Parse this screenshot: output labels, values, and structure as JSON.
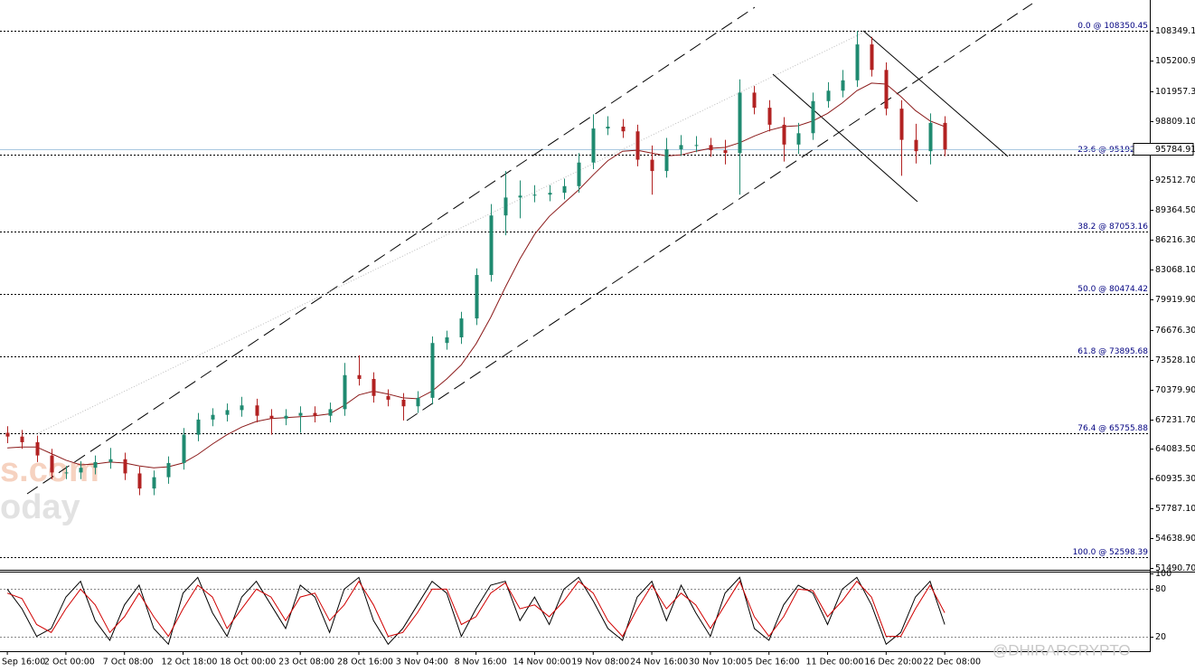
{
  "chart_data": [
    {
      "type": "candlestick",
      "xlim": [
        -0.5,
        78
      ],
      "xticks": [
        {
          "value": 0,
          "label": "Sep 16:00"
        },
        {
          "value": 4,
          "label": "2 Oct 00:00"
        },
        {
          "value": 8,
          "label": "7 Oct 08:00"
        },
        {
          "value": 12,
          "label": "12 Oct 18:00"
        },
        {
          "value": 16,
          "label": "18 Oct 00:00"
        },
        {
          "value": 20,
          "label": "23 Oct 08:00"
        },
        {
          "value": 24,
          "label": "28 Oct 16:00"
        },
        {
          "value": 28,
          "label": "3 Nov 04:00"
        },
        {
          "value": 32,
          "label": "8 Nov 16:00"
        },
        {
          "value": 36,
          "label": "14 Nov 00:00"
        },
        {
          "value": 40,
          "label": "19 Nov 08:00"
        },
        {
          "value": 44,
          "label": "24 Nov 16:00"
        },
        {
          "value": 48,
          "label": "30 Nov 10:00"
        },
        {
          "value": 52,
          "label": "5 Dec 16:00"
        },
        {
          "value": 56,
          "label": "11 Dec 00:00"
        },
        {
          "value": 60,
          "label": "16 Dec 20:00"
        },
        {
          "value": 64,
          "label": "22 Dec 08:00"
        }
      ],
      "ylim": [
        51300,
        111600
      ],
      "yticks": [
        {
          "value": 108349.1,
          "label": "108349.10"
        },
        {
          "value": 105200.9,
          "label": "105200.90"
        },
        {
          "value": 101957.3,
          "label": "101957.30"
        },
        {
          "value": 98809.1,
          "label": "98809.10"
        },
        {
          "value": 92512.7,
          "label": "92512.70"
        },
        {
          "value": 89364.5,
          "label": "89364.50"
        },
        {
          "value": 86216.3,
          "label": "86216.30"
        },
        {
          "value": 83068.1,
          "label": "83068.10"
        },
        {
          "value": 79919.9,
          "label": "79919.90"
        },
        {
          "value": 76676.3,
          "label": "76676.30"
        },
        {
          "value": 73528.1,
          "label": "73528.10"
        },
        {
          "value": 70379.9,
          "label": "70379.90"
        },
        {
          "value": 67231.7,
          "label": "67231.70"
        },
        {
          "value": 64083.5,
          "label": "64083.50"
        },
        {
          "value": 60935.3,
          "label": "60935.30"
        },
        {
          "value": 57787.1,
          "label": "57787.10"
        },
        {
          "value": 54638.9,
          "label": "54638.90"
        },
        {
          "value": 51490.7,
          "label": "51490.70"
        }
      ],
      "grid": false,
      "up_color": "#1f8a70",
      "down_color": "#b22222",
      "open": [
        65800,
        65400,
        64800,
        63400,
        61600,
        61600,
        62100,
        62700,
        63000,
        61500,
        59900,
        61100,
        62600,
        65600,
        67200,
        67700,
        68200,
        68700,
        67600,
        67300,
        67600,
        67900,
        67600,
        68300,
        71900,
        71500,
        69700,
        69300,
        68600,
        69500,
        75300,
        75900,
        77900,
        82500,
        88800,
        90700,
        90900,
        91000,
        91200,
        91900,
        94400,
        98000,
        98200,
        97700,
        94700,
        93500,
        95800,
        96250,
        96250,
        95700,
        95400,
        101800,
        100200,
        98400,
        96300,
        97500,
        100900,
        102000,
        103100,
        106900,
        104200,
        100100,
        96800,
        95600,
        98600
      ],
      "high": [
        66500,
        66100,
        65500,
        64100,
        62300,
        62800,
        63400,
        64200,
        63700,
        62200,
        61800,
        63300,
        66300,
        67900,
        68400,
        68900,
        69600,
        69400,
        68300,
        68300,
        68600,
        68600,
        69000,
        73200,
        74000,
        72200,
        70400,
        70000,
        70200,
        76000,
        76600,
        78600,
        83200,
        90000,
        93500,
        92500,
        92000,
        92000,
        92700,
        95400,
        99500,
        99300,
        99000,
        98400,
        96200,
        97000,
        97300,
        97200,
        97000,
        96800,
        103200,
        102500,
        101000,
        99200,
        98600,
        101800,
        102900,
        104200,
        108350,
        107700,
        105000,
        101000,
        98500,
        99600,
        99300
      ],
      "low": [
        64700,
        64100,
        62700,
        60900,
        60900,
        60900,
        61400,
        62000,
        60800,
        59200,
        59200,
        60400,
        61900,
        64900,
        66500,
        67000,
        67500,
        66900,
        65600,
        66600,
        65800,
        66900,
        66900,
        67600,
        70800,
        69000,
        68600,
        67100,
        67900,
        68800,
        74600,
        75200,
        77200,
        81800,
        86700,
        88500,
        90200,
        90300,
        90500,
        91200,
        93700,
        97300,
        97000,
        94000,
        91000,
        92800,
        95100,
        95500,
        95000,
        94200,
        91000,
        99500,
        97700,
        94500,
        95300,
        96800,
        100200,
        101300,
        102400,
        103500,
        99400,
        93000,
        94300,
        94200,
        95080
      ],
      "close": [
        65400,
        64800,
        63400,
        61600,
        61600,
        62100,
        62700,
        63000,
        61500,
        59900,
        61100,
        62600,
        65600,
        67200,
        67700,
        68200,
        68700,
        67600,
        67300,
        67600,
        67900,
        67600,
        68300,
        71900,
        71500,
        69700,
        69300,
        68600,
        69500,
        75300,
        75900,
        77900,
        82500,
        88800,
        90700,
        90900,
        91000,
        91200,
        91900,
        94400,
        98000,
        98200,
        97700,
        94700,
        93500,
        95800,
        96250,
        96250,
        95700,
        95400,
        101800,
        100200,
        98400,
        96300,
        97500,
        100900,
        102000,
        103100,
        106900,
        104200,
        100100,
        96800,
        95600,
        98600,
        95780
      ],
      "ma": {
        "color": "#8b1a1a",
        "values": [
          64200,
          64300,
          64300,
          63600,
          62900,
          62400,
          62500,
          62700,
          62600,
          62300,
          62100,
          62200,
          62600,
          63500,
          64600,
          65600,
          66400,
          67000,
          67300,
          67400,
          67500,
          67600,
          67800,
          68700,
          69800,
          70200,
          69900,
          69500,
          69400,
          70200,
          71500,
          73000,
          75200,
          78000,
          81200,
          84200,
          86800,
          88700,
          90100,
          91500,
          93100,
          94600,
          95600,
          95700,
          95400,
          95100,
          95200,
          95600,
          95900,
          96000,
          96500,
          97200,
          97800,
          98200,
          98300,
          98800,
          99600,
          100700,
          102000,
          102800,
          102700,
          101400,
          99900,
          98800,
          98200
        ]
      },
      "levels": [
        {
          "value": 108350.45,
          "label": "0.0 @ 108350.45"
        },
        {
          "value": 95192.96,
          "label": "23.6 @ 95192.96"
        },
        {
          "value": 87053.16,
          "label": "38.2 @ 87053.16"
        },
        {
          "value": 80474.42,
          "label": "50.0 @ 80474.42"
        },
        {
          "value": 73895.68,
          "label": "61.8 @ 73895.68"
        },
        {
          "value": 65755.88,
          "label": "76.4 @ 65755.88"
        },
        {
          "value": 52598.39,
          "label": "100.0 @ 52598.39"
        }
      ],
      "last_price": 95784.91,
      "last_price_color": "#a9c8e0",
      "watermark": [
        "s.com",
        "oday"
      ],
      "credit": "@DHIRARCRYPTO"
    },
    {
      "type": "line",
      "ylim": [
        0,
        100
      ],
      "yticks": [
        100,
        80,
        20
      ],
      "series": [
        {
          "color": "#000000",
          "values": [
            80,
            55,
            20,
            30,
            70,
            90,
            40,
            15,
            60,
            85,
            30,
            10,
            75,
            95,
            50,
            20,
            70,
            90,
            60,
            30,
            85,
            70,
            25,
            80,
            95,
            40,
            10,
            30,
            60,
            90,
            75,
            20,
            55,
            85,
            90,
            40,
            70,
            35,
            80,
            95,
            65,
            30,
            15,
            70,
            90,
            40,
            85,
            50,
            20,
            75,
            95,
            30,
            15,
            60,
            85,
            75,
            35,
            80,
            95,
            60,
            10,
            25,
            70,
            90,
            35
          ]
        },
        {
          "color": "#d00000",
          "values": [
            75,
            68,
            35,
            25,
            55,
            80,
            60,
            25,
            45,
            75,
            45,
            20,
            55,
            85,
            70,
            30,
            55,
            80,
            70,
            40,
            70,
            75,
            40,
            60,
            90,
            60,
            20,
            25,
            50,
            80,
            80,
            35,
            45,
            75,
            88,
            55,
            60,
            45,
            65,
            90,
            75,
            40,
            20,
            55,
            85,
            55,
            75,
            60,
            30,
            60,
            90,
            45,
            20,
            45,
            80,
            78,
            45,
            65,
            90,
            70,
            20,
            20,
            55,
            85,
            50
          ]
        }
      ]
    }
  ]
}
